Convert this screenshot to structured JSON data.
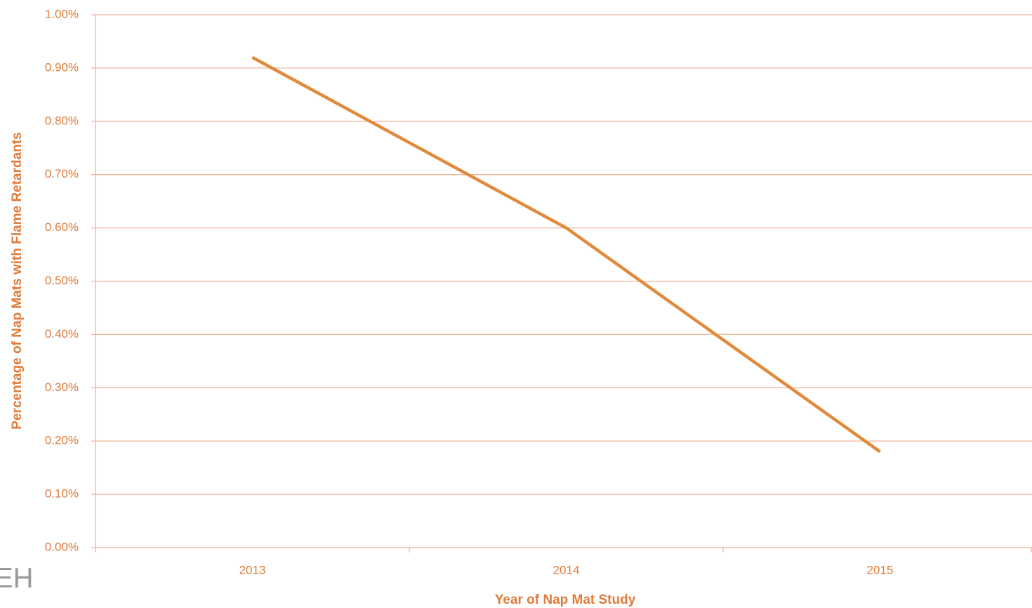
{
  "chart_data": {
    "type": "line",
    "x_label": "Year of Nap Mat Study",
    "y_label": "Percentage of Nap Mats with Flame Retardants",
    "categories": [
      "2013",
      "2014",
      "2015"
    ],
    "series": [
      {
        "name": "Percentage of Nap Mats with Flame Retardants",
        "color": "#e08a3c",
        "values": [
          0.92,
          0.6,
          0.18
        ]
      }
    ],
    "ylim": [
      0,
      1
    ],
    "yticks": [
      {
        "value": 0,
        "label": "0.00%"
      },
      {
        "value": 0.1,
        "label": "0.10%"
      },
      {
        "value": 0.2,
        "label": "0.20%"
      },
      {
        "value": 0.3,
        "label": "0.30%"
      },
      {
        "value": 0.4,
        "label": "0.40%"
      },
      {
        "value": 0.5,
        "label": "0.50%"
      },
      {
        "value": 0.6,
        "label": "0.60%"
      },
      {
        "value": 0.7,
        "label": "0.70%"
      },
      {
        "value": 0.8,
        "label": "0.80%"
      },
      {
        "value": 0.9,
        "label": "0.90%"
      },
      {
        "value": 1,
        "label": "1.00%"
      }
    ],
    "grid": true
  },
  "logo_text": "EH"
}
